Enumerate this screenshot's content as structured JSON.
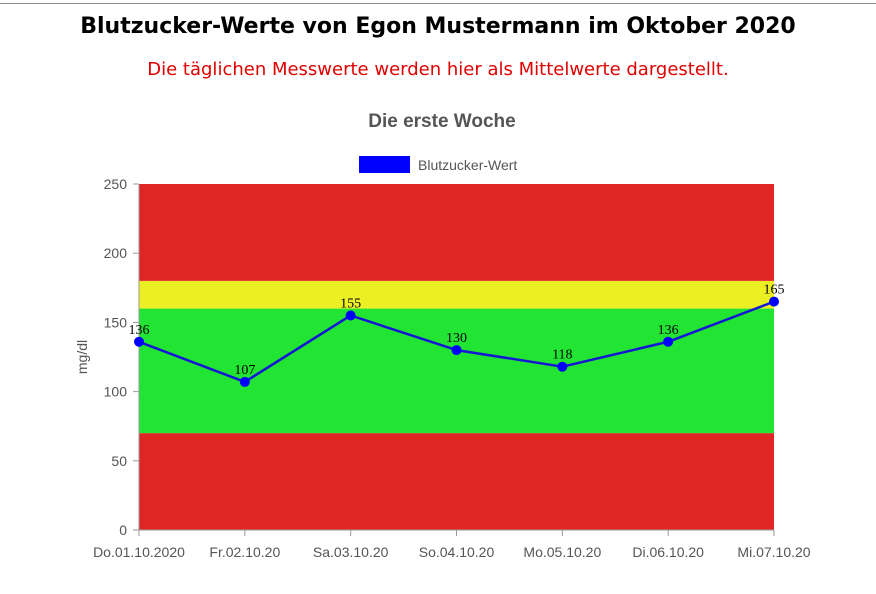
{
  "page": {
    "title": "Blutzucker-Werte von Egon Mustermann im Oktober 2020",
    "subtitle": "Die täglichen Messwerte werden hier als Mittelwerte dargestellt."
  },
  "chart_data": {
    "type": "line",
    "title": "Die erste Woche",
    "ylabel": "mg/dl",
    "xlabel": "",
    "ylim": [
      0,
      250
    ],
    "yticks": [
      0,
      50,
      100,
      150,
      200,
      250
    ],
    "grid": false,
    "legend_position": "top-center",
    "categories": [
      "Do.01.10.2020",
      "Fr.02.10.20",
      "Sa.03.10.20",
      "So.04.10.20",
      "Mo.05.10.20",
      "Di.06.10.20",
      "Mi.07.10.20"
    ],
    "series": [
      {
        "name": "Blutzucker-Wert",
        "color": "#0000ff",
        "values": [
          136,
          107,
          155,
          130,
          118,
          136,
          165
        ]
      }
    ],
    "bands": [
      {
        "from": 0,
        "to": 70,
        "color": "#e02525"
      },
      {
        "from": 70,
        "to": 160,
        "color": "#22e432"
      },
      {
        "from": 160,
        "to": 180,
        "color": "#ecef22"
      },
      {
        "from": 180,
        "to": 250,
        "color": "#e02525"
      }
    ]
  }
}
